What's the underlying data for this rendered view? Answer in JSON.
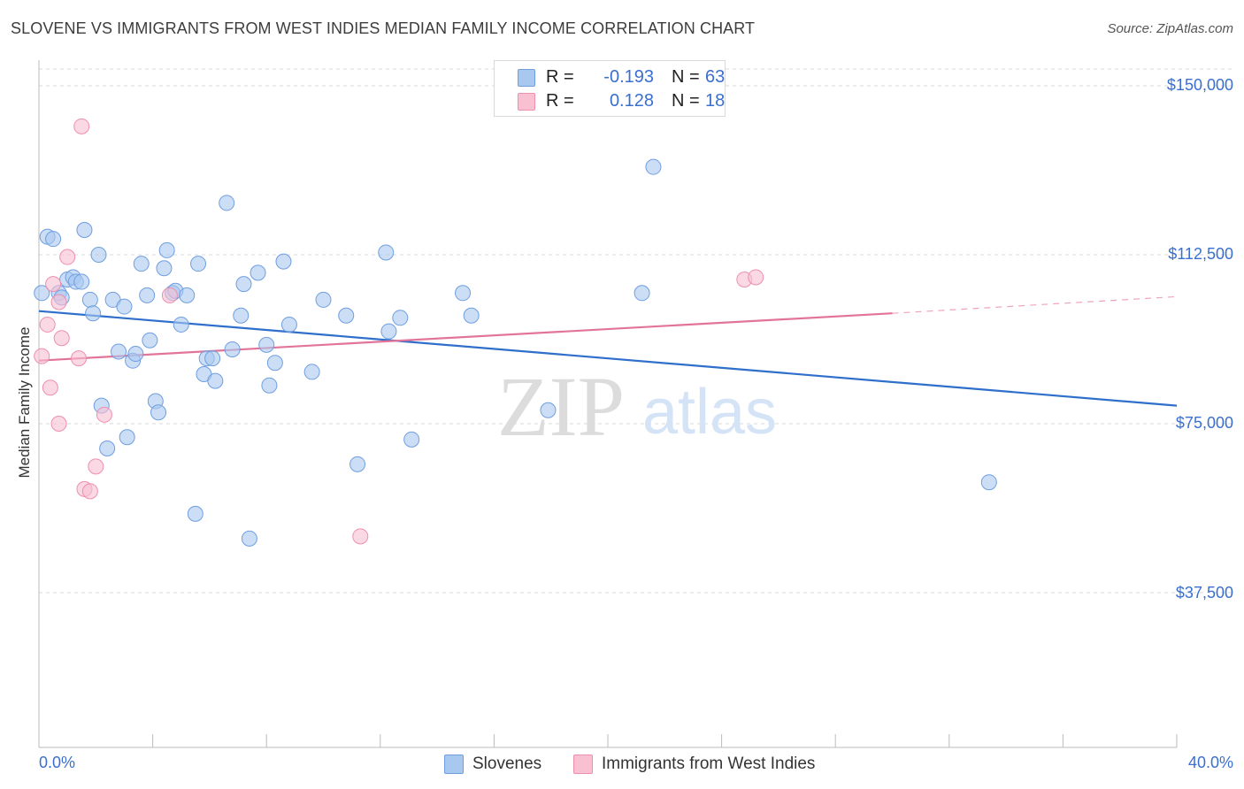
{
  "title": "SLOVENE VS IMMIGRANTS FROM WEST INDIES MEDIAN FAMILY INCOME CORRELATION CHART",
  "source": "Source: ZipAtlas.com",
  "watermark": {
    "zip": "ZIP",
    "atlas": "atlas"
  },
  "legend": {
    "rows": [
      {
        "r_label": "R =",
        "r_value": "-0.193",
        "n_label": "N =",
        "n_value": "63",
        "color": "#a9c8f0",
        "border": "#6f9ee0"
      },
      {
        "r_label": "R =",
        "r_value": "0.128",
        "n_label": "N =",
        "n_value": "18",
        "color": "#f9c0d2",
        "border": "#ee8faf"
      }
    ]
  },
  "bottom_legend": {
    "series1": "Slovenes",
    "series2": "Immigrants from West Indies"
  },
  "axis": {
    "ylabel": "Median Family Income",
    "x_min_label": "0.0%",
    "x_max_label": "40.0%",
    "y_ticks": [
      "$150,000",
      "$112,500",
      "$75,000",
      "$37,500"
    ]
  },
  "chart_data": {
    "type": "scatter",
    "title": "SLOVENE VS IMMIGRANTS FROM WEST INDIES MEDIAN FAMILY INCOME CORRELATION CHART",
    "xlabel": "",
    "ylabel": "Median Family Income",
    "xlim": [
      0,
      40
    ],
    "ylim": [
      0,
      157000
    ],
    "y_tick_values": [
      37500,
      75000,
      112500,
      150000
    ],
    "grid": true,
    "legend_position": "top-center",
    "series": [
      {
        "name": "Slovenes",
        "color": "#6f9ee0",
        "fill": "#a9c8f0",
        "r": -0.193,
        "n": 63,
        "trend": {
          "x": [
            0,
            40
          ],
          "y": [
            100000,
            79000
          ]
        },
        "points": [
          [
            0.1,
            104000
          ],
          [
            0.3,
            116500
          ],
          [
            0.5,
            116000
          ],
          [
            0.7,
            104000
          ],
          [
            0.8,
            103000
          ],
          [
            1.0,
            107000
          ],
          [
            1.2,
            107500
          ],
          [
            1.3,
            106500
          ],
          [
            1.5,
            106500
          ],
          [
            1.6,
            118000
          ],
          [
            1.8,
            102500
          ],
          [
            1.9,
            99500
          ],
          [
            2.1,
            112500
          ],
          [
            2.2,
            79000
          ],
          [
            2.4,
            69500
          ],
          [
            2.6,
            102500
          ],
          [
            2.8,
            91000
          ],
          [
            3.0,
            101000
          ],
          [
            3.1,
            72000
          ],
          [
            3.3,
            89000
          ],
          [
            3.4,
            90500
          ],
          [
            3.6,
            110500
          ],
          [
            3.8,
            103500
          ],
          [
            3.9,
            93500
          ],
          [
            4.1,
            80000
          ],
          [
            4.2,
            77500
          ],
          [
            4.4,
            109500
          ],
          [
            4.5,
            113500
          ],
          [
            4.7,
            104000
          ],
          [
            4.8,
            104500
          ],
          [
            5.0,
            97000
          ],
          [
            5.2,
            103500
          ],
          [
            5.5,
            55000
          ],
          [
            5.6,
            110500
          ],
          [
            5.8,
            86000
          ],
          [
            5.9,
            89500
          ],
          [
            6.1,
            89500
          ],
          [
            6.2,
            84500
          ],
          [
            6.6,
            124000
          ],
          [
            6.8,
            91500
          ],
          [
            7.1,
            99000
          ],
          [
            7.2,
            106000
          ],
          [
            7.4,
            49500
          ],
          [
            7.7,
            108500
          ],
          [
            8.0,
            92500
          ],
          [
            8.1,
            83500
          ],
          [
            8.3,
            88500
          ],
          [
            8.6,
            111000
          ],
          [
            8.8,
            97000
          ],
          [
            9.6,
            86500
          ],
          [
            10.0,
            102500
          ],
          [
            10.8,
            99000
          ],
          [
            11.2,
            66000
          ],
          [
            12.2,
            113000
          ],
          [
            12.3,
            95500
          ],
          [
            12.7,
            98500
          ],
          [
            13.1,
            71500
          ],
          [
            14.9,
            104000
          ],
          [
            15.2,
            99000
          ],
          [
            17.9,
            78000
          ],
          [
            21.2,
            104000
          ],
          [
            21.6,
            132000
          ],
          [
            33.4,
            62000
          ]
        ]
      },
      {
        "name": "Immigrants from West Indies",
        "color": "#ee8faf",
        "fill": "#f9c0d2",
        "r": 0.128,
        "n": 18,
        "trend": {
          "x": [
            0,
            30
          ],
          "y": [
            89000,
            99500
          ],
          "dashed_to": {
            "x": 40,
            "y": 103200
          }
        },
        "points": [
          [
            0.1,
            90000
          ],
          [
            0.3,
            97000
          ],
          [
            0.4,
            83000
          ],
          [
            0.5,
            106000
          ],
          [
            0.7,
            75000
          ],
          [
            0.7,
            102000
          ],
          [
            0.8,
            94000
          ],
          [
            1.0,
            112000
          ],
          [
            1.4,
            89500
          ],
          [
            1.5,
            141000
          ],
          [
            1.6,
            60500
          ],
          [
            1.8,
            60000
          ],
          [
            2.0,
            65500
          ],
          [
            2.3,
            77000
          ],
          [
            4.6,
            103500
          ],
          [
            11.3,
            50000
          ],
          [
            24.8,
            107000
          ],
          [
            25.2,
            107500
          ]
        ]
      }
    ]
  }
}
